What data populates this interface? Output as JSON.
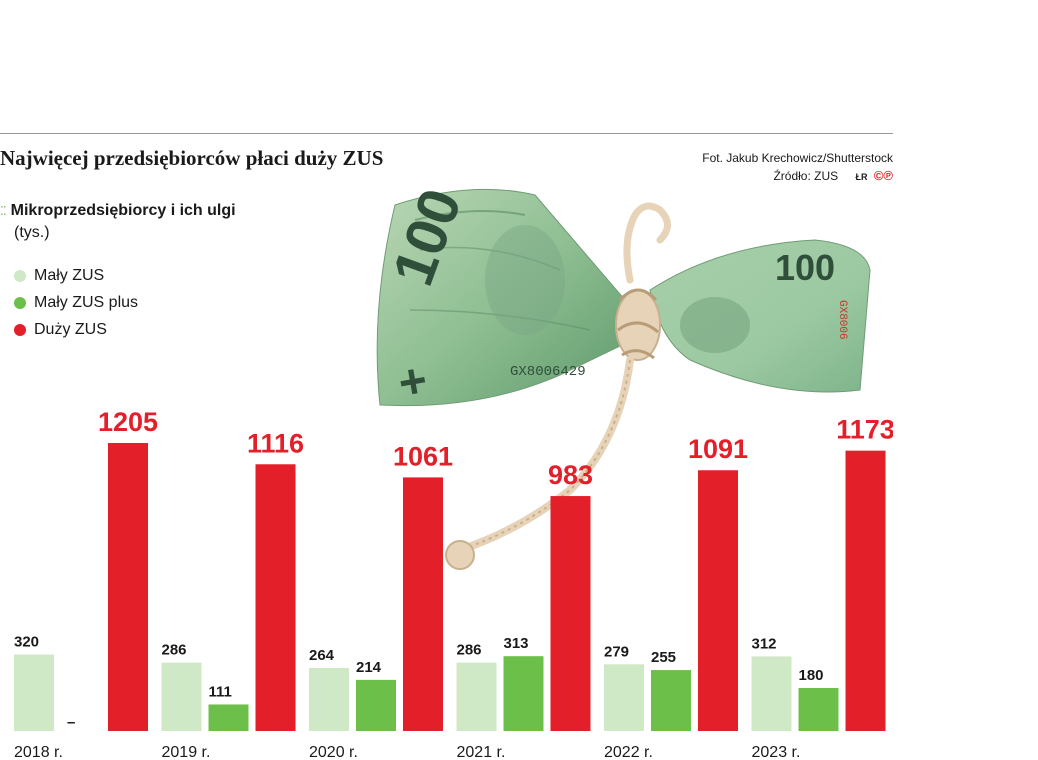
{
  "header": {
    "title": "Najwięcej przedsiębiorców płaci duży ZUS",
    "photo_credit": "Fot. Jakub Krechowicz/Shutterstock",
    "source": "Źródło: ZUS",
    "logo": "ŁR",
    "copyright": "©℗"
  },
  "subhead": {
    "marker": "⁚⁚",
    "main": "Mikroprzedsiębiorcy i ich ulgi",
    "unit": "(tys.)"
  },
  "legend": [
    {
      "label": "Mały ZUS",
      "color": "#cfe8c6"
    },
    {
      "label": "Mały ZUS plus",
      "color": "#6cc04a"
    },
    {
      "label": "Duży ZUS",
      "color": "#e3202a"
    }
  ],
  "colors": {
    "maly_zus": "#cfe8c6",
    "maly_zus_plus": "#6cc04a",
    "duzy_zus": "#e3202a"
  },
  "chart_data": {
    "type": "bar",
    "categories": [
      "2018 r.",
      "2019 r.",
      "2020 r.",
      "2021 r.",
      "2022 r.",
      "2023 r."
    ],
    "series": [
      {
        "name": "Mały ZUS",
        "values": [
          320,
          286,
          264,
          286,
          279,
          312
        ]
      },
      {
        "name": "Mały ZUS plus",
        "values": [
          null,
          111,
          214,
          313,
          255,
          180
        ]
      },
      {
        "name": "Duży ZUS",
        "values": [
          1205,
          1116,
          1061,
          983,
          1091,
          1173
        ]
      }
    ],
    "missing_label": "–",
    "ylim": [
      0,
      1205
    ]
  }
}
